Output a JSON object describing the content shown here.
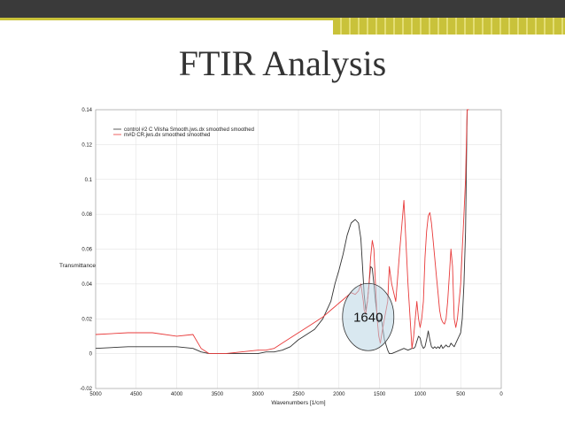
{
  "slide": {
    "title": "FTIR Analysis"
  },
  "chart_data": {
    "type": "line",
    "xlabel": "Wavenumbers [1/cm]",
    "ylabel": "Transmittance",
    "xlim": [
      5000,
      0
    ],
    "ylim": [
      -0.02,
      0.14
    ],
    "x_ticks": [
      5000,
      4500,
      4000,
      3500,
      3000,
      2500,
      2000,
      1500,
      1000,
      500,
      0
    ],
    "y_ticks": [
      -0.02,
      0,
      0.02,
      0.04,
      0.06,
      0.08,
      0.1,
      0.12,
      0.14
    ],
    "x_tick_labels": [
      "5000",
      "4500",
      "4000",
      "3500",
      "3000",
      "2500",
      "2000",
      "1500",
      "1000",
      "500",
      "0"
    ],
    "y_tick_labels": [
      "-0.02",
      "0",
      "0.02",
      "0.04",
      "0.06",
      "0.08",
      "0.1",
      "0.12",
      "0.14"
    ],
    "grid": true,
    "legend_position": "top-left",
    "annotation": {
      "text": "1640",
      "x": 1640,
      "y": 0.021
    },
    "series": [
      {
        "name": "control #2 C Vilsha Smooth.jws.dx smoothed smoothed",
        "color": "#333333",
        "x": [
          5000,
          4600,
          4300,
          4000,
          3800,
          3700,
          3600,
          3400,
          3000,
          2900,
          2800,
          2700,
          2600,
          2500,
          2400,
          2300,
          2200,
          2100,
          2050,
          2000,
          1950,
          1900,
          1850,
          1800,
          1760,
          1730,
          1700,
          1690,
          1670,
          1650,
          1630,
          1610,
          1590,
          1570,
          1550,
          1530,
          1510,
          1490,
          1470,
          1440,
          1400,
          1380,
          1350,
          1300,
          1250,
          1200,
          1150,
          1100,
          1080,
          1060,
          1040,
          1020,
          1000,
          980,
          960,
          940,
          920,
          900,
          880,
          860,
          840,
          820,
          800,
          780,
          760,
          740,
          720,
          700,
          680,
          660,
          640,
          620,
          600,
          580,
          560,
          540,
          520,
          500,
          480,
          460,
          440,
          420,
          400
        ],
        "y": [
          0.003,
          0.004,
          0.004,
          0.004,
          0.003,
          0.001,
          0.0,
          0.0,
          0.0,
          0.001,
          0.001,
          0.002,
          0.004,
          0.008,
          0.011,
          0.014,
          0.02,
          0.03,
          0.04,
          0.048,
          0.057,
          0.068,
          0.075,
          0.077,
          0.075,
          0.066,
          0.042,
          0.034,
          0.025,
          0.03,
          0.04,
          0.05,
          0.049,
          0.04,
          0.03,
          0.022,
          0.018,
          0.02,
          0.018,
          0.008,
          0.002,
          0.0,
          0.0,
          0.001,
          0.002,
          0.003,
          0.002,
          0.003,
          0.003,
          0.004,
          0.007,
          0.01,
          0.009,
          0.005,
          0.003,
          0.004,
          0.008,
          0.013,
          0.008,
          0.004,
          0.003,
          0.004,
          0.003,
          0.004,
          0.003,
          0.005,
          0.003,
          0.004,
          0.005,
          0.004,
          0.004,
          0.006,
          0.005,
          0.004,
          0.006,
          0.008,
          0.01,
          0.012,
          0.02,
          0.04,
          0.07,
          0.14,
          0.14
        ]
      },
      {
        "name": "m#D CR.jws.dx smoothed smoothed",
        "color": "#e83a3a",
        "x": [
          5000,
          4600,
          4300,
          4000,
          3800,
          3700,
          3600,
          3400,
          3000,
          2900,
          2800,
          2700,
          2600,
          2500,
          2400,
          2300,
          2200,
          2100,
          2050,
          2000,
          1950,
          1900,
          1850,
          1800,
          1760,
          1730,
          1700,
          1690,
          1670,
          1650,
          1630,
          1610,
          1590,
          1570,
          1550,
          1530,
          1510,
          1490,
          1470,
          1440,
          1400,
          1380,
          1350,
          1300,
          1250,
          1200,
          1150,
          1100,
          1080,
          1060,
          1040,
          1020,
          1000,
          980,
          960,
          940,
          920,
          900,
          880,
          860,
          840,
          820,
          800,
          780,
          760,
          740,
          720,
          700,
          680,
          660,
          640,
          620,
          600,
          580,
          560,
          540,
          520,
          500,
          480,
          460,
          440,
          420,
          400
        ],
        "y": [
          0.011,
          0.012,
          0.012,
          0.01,
          0.011,
          0.003,
          0.0,
          0.0,
          0.002,
          0.002,
          0.003,
          0.006,
          0.009,
          0.012,
          0.015,
          0.018,
          0.021,
          0.025,
          0.027,
          0.029,
          0.031,
          0.033,
          0.035,
          0.034,
          0.036,
          0.04,
          0.03,
          0.025,
          0.023,
          0.03,
          0.04,
          0.055,
          0.065,
          0.06,
          0.04,
          0.02,
          0.01,
          0.006,
          0.012,
          0.02,
          0.03,
          0.05,
          0.04,
          0.03,
          0.06,
          0.088,
          0.04,
          0.003,
          0.01,
          0.02,
          0.03,
          0.02,
          0.015,
          0.02,
          0.03,
          0.055,
          0.07,
          0.079,
          0.081,
          0.075,
          0.065,
          0.055,
          0.045,
          0.035,
          0.025,
          0.02,
          0.018,
          0.017,
          0.02,
          0.03,
          0.045,
          0.06,
          0.05,
          0.02,
          0.015,
          0.02,
          0.03,
          0.04,
          0.06,
          0.08,
          0.1,
          0.14,
          0.14
        ]
      }
    ]
  }
}
